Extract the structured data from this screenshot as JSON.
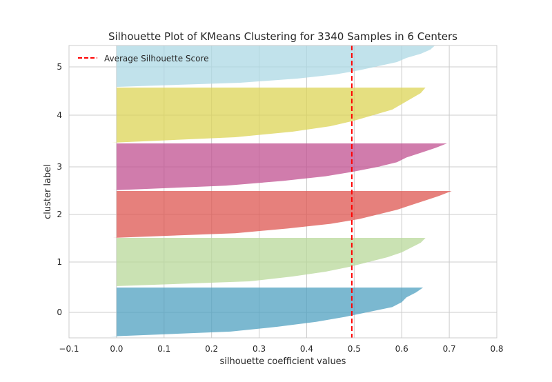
{
  "chart_data": {
    "type": "area",
    "title": "Silhouette Plot of KMeans Clustering for 3340 Samples in 6 Centers",
    "xlabel": "silhouette coefficient values",
    "ylabel": "cluster label",
    "xlim": [
      -0.1,
      0.8
    ],
    "xticks": [
      -0.1,
      0.0,
      0.1,
      0.2,
      0.3,
      0.4,
      0.5,
      0.6,
      0.7,
      0.8
    ],
    "xtick_labels": [
      "−0.1",
      "0.0",
      "0.1",
      "0.2",
      "0.3",
      "0.4",
      "0.5",
      "0.6",
      "0.7",
      "0.8"
    ],
    "grid": true,
    "legend_position": "top-left",
    "average_silhouette_score": 0.495,
    "average_line_label": "Average Silhouette Score",
    "average_line_color": "#ff0000",
    "clusters": [
      {
        "label": "0",
        "color": "#4fa0c0",
        "silhouette_profile": [
          [
            0.0,
            -0.015
          ],
          [
            0.1,
            0.24
          ],
          [
            0.2,
            0.34
          ],
          [
            0.3,
            0.42
          ],
          [
            0.4,
            0.48
          ],
          [
            0.5,
            0.53
          ],
          [
            0.6,
            0.58
          ],
          [
            0.7,
            0.6
          ],
          [
            0.8,
            0.61
          ],
          [
            0.9,
            0.63
          ],
          [
            1.0,
            0.645
          ]
        ]
      },
      {
        "label": "1",
        "color": "#b8d89a",
        "silhouette_profile": [
          [
            0.0,
            -0.003
          ],
          [
            0.1,
            0.28
          ],
          [
            0.2,
            0.37
          ],
          [
            0.3,
            0.44
          ],
          [
            0.4,
            0.49
          ],
          [
            0.5,
            0.53
          ],
          [
            0.6,
            0.57
          ],
          [
            0.7,
            0.6
          ],
          [
            0.8,
            0.62
          ],
          [
            0.9,
            0.64
          ],
          [
            1.0,
            0.65
          ]
        ]
      },
      {
        "label": "2",
        "color": "#dd5550",
        "silhouette_profile": [
          [
            0.0,
            -0.008
          ],
          [
            0.1,
            0.25
          ],
          [
            0.2,
            0.36
          ],
          [
            0.3,
            0.45
          ],
          [
            0.4,
            0.51
          ],
          [
            0.5,
            0.55
          ],
          [
            0.6,
            0.59
          ],
          [
            0.7,
            0.62
          ],
          [
            0.8,
            0.65
          ],
          [
            0.9,
            0.68
          ],
          [
            1.0,
            0.705
          ]
        ]
      },
      {
        "label": "3",
        "color": "#c05090",
        "silhouette_profile": [
          [
            0.0,
            -0.008
          ],
          [
            0.1,
            0.23
          ],
          [
            0.2,
            0.35
          ],
          [
            0.3,
            0.44
          ],
          [
            0.4,
            0.5
          ],
          [
            0.5,
            0.55
          ],
          [
            0.6,
            0.59
          ],
          [
            0.7,
            0.61
          ],
          [
            0.8,
            0.64
          ],
          [
            0.9,
            0.67
          ],
          [
            1.0,
            0.695
          ]
        ]
      },
      {
        "label": "4",
        "color": "#dcd455",
        "silhouette_profile": [
          [
            0.0,
            -0.01
          ],
          [
            0.1,
            0.25
          ],
          [
            0.2,
            0.37
          ],
          [
            0.3,
            0.45
          ],
          [
            0.4,
            0.5
          ],
          [
            0.5,
            0.54
          ],
          [
            0.6,
            0.58
          ],
          [
            0.7,
            0.6
          ],
          [
            0.8,
            0.62
          ],
          [
            0.9,
            0.64
          ],
          [
            1.0,
            0.65
          ]
        ]
      },
      {
        "label": "5",
        "color": "#acd8e4",
        "silhouette_profile": [
          [
            0.0,
            0.0
          ],
          [
            0.1,
            0.26
          ],
          [
            0.2,
            0.38
          ],
          [
            0.3,
            0.46
          ],
          [
            0.4,
            0.51
          ],
          [
            0.5,
            0.55
          ],
          [
            0.6,
            0.59
          ],
          [
            0.7,
            0.61
          ],
          [
            0.8,
            0.64
          ],
          [
            0.9,
            0.66
          ],
          [
            1.0,
            0.67
          ]
        ]
      }
    ]
  }
}
